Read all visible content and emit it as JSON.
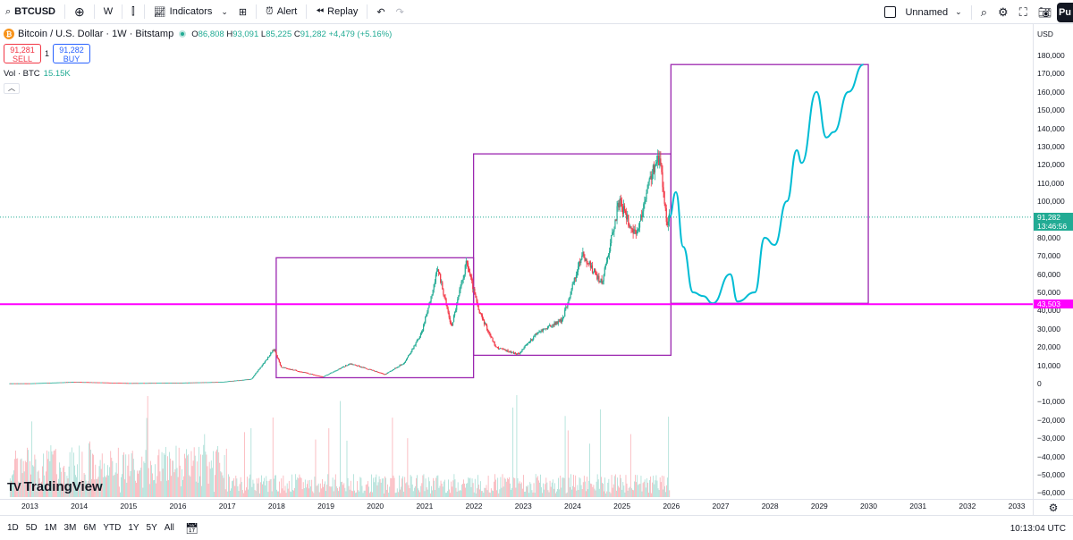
{
  "toolbar": {
    "symbol": "BTCUSD",
    "interval": "W",
    "indicators_label": "Indicators",
    "alert_label": "Alert",
    "replay_label": "Replay",
    "layout_name": "Unnamed",
    "publish_label": "Pu"
  },
  "legend": {
    "title": "Bitcoin / U.S. Dollar · 1W · Bitstamp",
    "open_key": "O",
    "open": "86,808",
    "high_key": "H",
    "high": "93,091",
    "low_key": "L",
    "low": "85,225",
    "close_key": "C",
    "close": "91,282",
    "change": "+4,479 (+5.16%)",
    "sell_price": "91,281",
    "sell_label": "SELL",
    "spread": "1",
    "buy_price": "91,282",
    "buy_label": "BUY",
    "volume_label": "Vol · BTC",
    "volume_value": "15.15K"
  },
  "watermark": "TradingView",
  "currency": "USD",
  "price_tags": {
    "last_price": "91,282",
    "countdown": "13:46:56",
    "line_price": "43,503"
  },
  "bottombar": {
    "ranges": [
      "1D",
      "5D",
      "1M",
      "3M",
      "6M",
      "YTD",
      "1Y",
      "5Y",
      "All"
    ],
    "time": "10:13:04 UTC"
  },
  "colors": {
    "up": "#22ab94",
    "down": "#f23645",
    "box": "#9c27b0",
    "hline": "#ff00ff",
    "projection": "#00bcd4"
  },
  "chart_data": {
    "type": "candlestick",
    "x_ticks": [
      "2013",
      "2014",
      "2015",
      "2016",
      "2017",
      "2018",
      "2019",
      "2020",
      "2021",
      "2022",
      "2023",
      "2024",
      "2025",
      "2026",
      "2027",
      "2028",
      "2029",
      "2030",
      "2031",
      "2032",
      "2033"
    ],
    "y_ticks": [
      "180,000",
      "170,000",
      "160,000",
      "150,000",
      "140,000",
      "130,000",
      "120,000",
      "110,000",
      "100,000",
      "90,000",
      "80,000",
      "70,000",
      "60,000",
      "50,000",
      "40,000",
      "30,000",
      "20,000",
      "10,000",
      "0",
      "−10,000",
      "−20,000",
      "−30,000",
      "−40,000",
      "−50,000",
      "−60,000"
    ],
    "ylim": [
      -62000,
      186000
    ],
    "xlim": [
      2012.5,
      2033.2
    ],
    "price_series": [
      [
        2013.0,
        100
      ],
      [
        2013.9,
        900
      ],
      [
        2014.5,
        600
      ],
      [
        2015.0,
        250
      ],
      [
        2016.0,
        430
      ],
      [
        2016.9,
        900
      ],
      [
        2017.5,
        2500
      ],
      [
        2017.96,
        19000
      ],
      [
        2018.1,
        9000
      ],
      [
        2018.5,
        6500
      ],
      [
        2018.95,
        3700
      ],
      [
        2019.5,
        11000
      ],
      [
        2019.95,
        7200
      ],
      [
        2020.2,
        5000
      ],
      [
        2020.6,
        11500
      ],
      [
        2020.95,
        28000
      ],
      [
        2021.28,
        63000
      ],
      [
        2021.55,
        31000
      ],
      [
        2021.86,
        67000
      ],
      [
        2022.1,
        40000
      ],
      [
        2022.45,
        20000
      ],
      [
        2022.9,
        16000
      ],
      [
        2023.3,
        28000
      ],
      [
        2023.8,
        35000
      ],
      [
        2024.2,
        71000
      ],
      [
        2024.6,
        55000
      ],
      [
        2024.95,
        100000
      ],
      [
        2025.3,
        80000
      ],
      [
        2025.6,
        115000
      ],
      [
        2025.78,
        124000
      ],
      [
        2025.92,
        87000
      ],
      [
        2025.97,
        91282
      ]
    ],
    "projection": [
      [
        2025.97,
        91282
      ],
      [
        2026.1,
        105000
      ],
      [
        2026.25,
        75000
      ],
      [
        2026.45,
        50000
      ],
      [
        2026.65,
        48000
      ],
      [
        2026.85,
        44000
      ],
      [
        2027.2,
        60000
      ],
      [
        2027.35,
        45000
      ],
      [
        2027.7,
        50000
      ],
      [
        2027.9,
        80000
      ],
      [
        2028.1,
        76000
      ],
      [
        2028.35,
        100000
      ],
      [
        2028.55,
        128000
      ],
      [
        2028.65,
        121000
      ],
      [
        2028.95,
        160000
      ],
      [
        2029.15,
        135000
      ],
      [
        2029.3,
        138000
      ],
      [
        2029.6,
        160000
      ],
      [
        2029.9,
        175000
      ]
    ],
    "boxes": [
      {
        "x0": 2018.0,
        "x1": 2022.0,
        "y0": 3200,
        "y1": 69000
      },
      {
        "x0": 2022.0,
        "x1": 2026.0,
        "y0": 15500,
        "y1": 126000
      },
      {
        "x0": 2026.0,
        "x1": 2030.0,
        "y0": 44000,
        "y1": 175000
      }
    ],
    "horizontal_line": 43503,
    "last_price": 91282,
    "volume_label": "Vol · BTC"
  }
}
